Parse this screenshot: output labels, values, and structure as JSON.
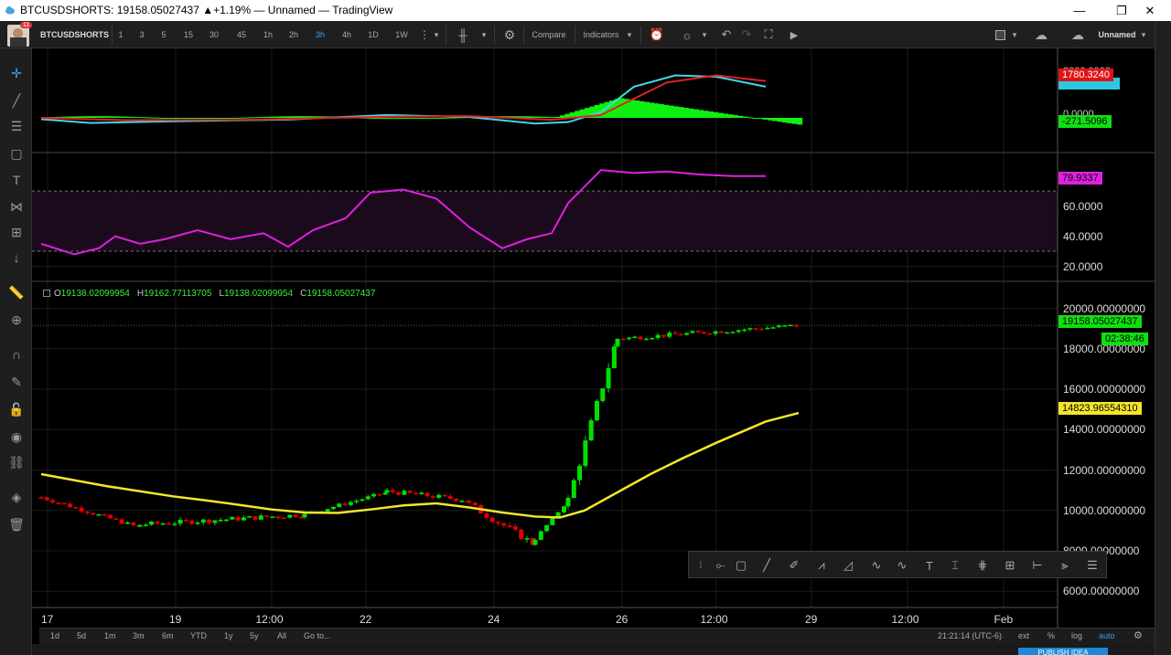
{
  "window": {
    "title": "BTCUSDSHORTS: 19158.05027437 ▲+1.19% — Unnamed — TradingView",
    "minimize": "—",
    "restore": "❐",
    "close": "✕"
  },
  "toolbar": {
    "avatar_badge": "11",
    "symbol": "BTCUSDSHORTS",
    "intervals": [
      "1",
      "3",
      "5",
      "15",
      "30",
      "45",
      "1h",
      "2h",
      "3h",
      "4h",
      "1D",
      "1W"
    ],
    "active_interval": "3h",
    "compare_label": "Compare",
    "indicators_label": "Indicators",
    "layout_name": "Unnamed"
  },
  "ohlc": {
    "o_label": "O",
    "o": "19138.02099954",
    "h_label": "H",
    "h": "19162.77113705",
    "l_label": "L",
    "l": "19138.02099954",
    "c_label": "C",
    "c": "19158.05027437"
  },
  "price_tags": {
    "macd_signal": "1780.3240",
    "macd_hist": "-271.5096",
    "rsi": "79.9337",
    "last_price": "19158.05027437",
    "countdown": "02:38:46",
    "ma": "14823.96554310"
  },
  "macd_axis": {
    "top_partial": "2000.0000",
    "zero": "0.0000"
  },
  "rsi_axis": [
    "60.0000",
    "40.0000",
    "20.0000"
  ],
  "price_axis": [
    "20000.00000000",
    "18000.00000000",
    "16000.00000000",
    "14000.00000000",
    "12000.00000000",
    "10000.00000000",
    "8000.00000000",
    "6000.00000000"
  ],
  "time_axis": [
    "17",
    "19",
    "12:00",
    "22",
    "24",
    "26",
    "12:00",
    "29",
    "12:00",
    "Feb"
  ],
  "bottom": {
    "ranges": [
      "1d",
      "5d",
      "1m",
      "3m",
      "6m",
      "YTD",
      "1y",
      "5y",
      "All"
    ],
    "goto": "Go to...",
    "clock": "21:21:14 (UTC-6)",
    "ext": "ext",
    "pct": "%",
    "log": "log",
    "auto": "auto"
  },
  "footer": {
    "publish": "PUBLISH IDEA"
  },
  "colors": {
    "up": "#00e000",
    "down": "#e00000",
    "ma": "#f5e62a",
    "rsi": "#e020e0",
    "macd_line": "#43d7e6",
    "signal_line": "#e02020",
    "hist": "#10f010",
    "accent": "#3da0e8"
  },
  "chart_data": {
    "type": "candlestick",
    "title": "",
    "symbol": "BTCUSDSHORTS",
    "interval": "3h",
    "xlabel": "",
    "ylabel": "",
    "ylim": [
      5200,
      21200
    ],
    "ma_series": [
      [
        0,
        11800
      ],
      [
        40,
        11500
      ],
      [
        80,
        11200
      ],
      [
        120,
        10950
      ],
      [
        160,
        10700
      ],
      [
        200,
        10500
      ],
      [
        240,
        10280
      ],
      [
        280,
        10050
      ],
      [
        320,
        9900
      ],
      [
        360,
        9880
      ],
      [
        400,
        10050
      ],
      [
        440,
        10250
      ],
      [
        480,
        10350
      ],
      [
        520,
        10150
      ],
      [
        560,
        9900
      ],
      [
        600,
        9700
      ],
      [
        630,
        9650
      ],
      [
        660,
        10000
      ],
      [
        700,
        10900
      ],
      [
        740,
        11800
      ],
      [
        780,
        12600
      ],
      [
        820,
        13350
      ],
      [
        860,
        14050
      ],
      [
        880,
        14400
      ],
      [
        920,
        14823.96
      ]
    ],
    "candles_segments": [
      {
        "from": 0,
        "to": 120,
        "start": 10650,
        "end": 9150,
        "noise": 200
      },
      {
        "from": 120,
        "to": 320,
        "start": 9300,
        "end": 9800,
        "noise": 250
      },
      {
        "from": 320,
        "to": 420,
        "start": 9800,
        "end": 10900,
        "noise": 180
      },
      {
        "from": 420,
        "to": 520,
        "start": 10950,
        "end": 10500,
        "noise": 250
      },
      {
        "from": 520,
        "to": 600,
        "start": 10300,
        "end": 8300,
        "noise": 350
      },
      {
        "from": 600,
        "to": 640,
        "start": 8600,
        "end": 10500,
        "noise": 150
      },
      {
        "from": 640,
        "to": 700,
        "start": 10500,
        "end": 18600,
        "noise": 500
      },
      {
        "from": 700,
        "to": 920,
        "start": 18500,
        "end": 19158.05,
        "noise": 220
      }
    ],
    "rsi": {
      "ylim": [
        10,
        95
      ],
      "bands": [
        30,
        60,
        70
      ],
      "last": 79.9337,
      "points": [
        [
          0,
          35
        ],
        [
          40,
          28
        ],
        [
          70,
          32
        ],
        [
          90,
          40
        ],
        [
          120,
          35
        ],
        [
          150,
          38
        ],
        [
          190,
          44
        ],
        [
          230,
          38
        ],
        [
          270,
          42
        ],
        [
          300,
          33
        ],
        [
          330,
          44
        ],
        [
          370,
          52
        ],
        [
          400,
          69
        ],
        [
          440,
          71
        ],
        [
          480,
          65
        ],
        [
          520,
          46
        ],
        [
          560,
          32
        ],
        [
          590,
          38
        ],
        [
          620,
          42
        ],
        [
          640,
          62
        ],
        [
          680,
          84
        ],
        [
          720,
          82
        ],
        [
          760,
          83
        ],
        [
          800,
          81
        ],
        [
          840,
          80
        ],
        [
          880,
          80
        ]
      ]
    },
    "macd": {
      "macd_line": [
        [
          0,
          -50
        ],
        [
          60,
          -180
        ],
        [
          160,
          -120
        ],
        [
          300,
          -60
        ],
        [
          420,
          100
        ],
        [
          520,
          30
        ],
        [
          600,
          -200
        ],
        [
          640,
          -150
        ],
        [
          680,
          200
        ],
        [
          720,
          1100
        ],
        [
          770,
          1500
        ],
        [
          820,
          1450
        ],
        [
          880,
          1100
        ]
      ],
      "signal_line": [
        [
          0,
          0
        ],
        [
          100,
          -80
        ],
        [
          250,
          -70
        ],
        [
          420,
          40
        ],
        [
          520,
          60
        ],
        [
          620,
          -70
        ],
        [
          680,
          100
        ],
        [
          760,
          1250
        ],
        [
          820,
          1500
        ],
        [
          880,
          1300
        ]
      ],
      "histogram_range": [
        -271.5096,
        800
      ]
    }
  }
}
